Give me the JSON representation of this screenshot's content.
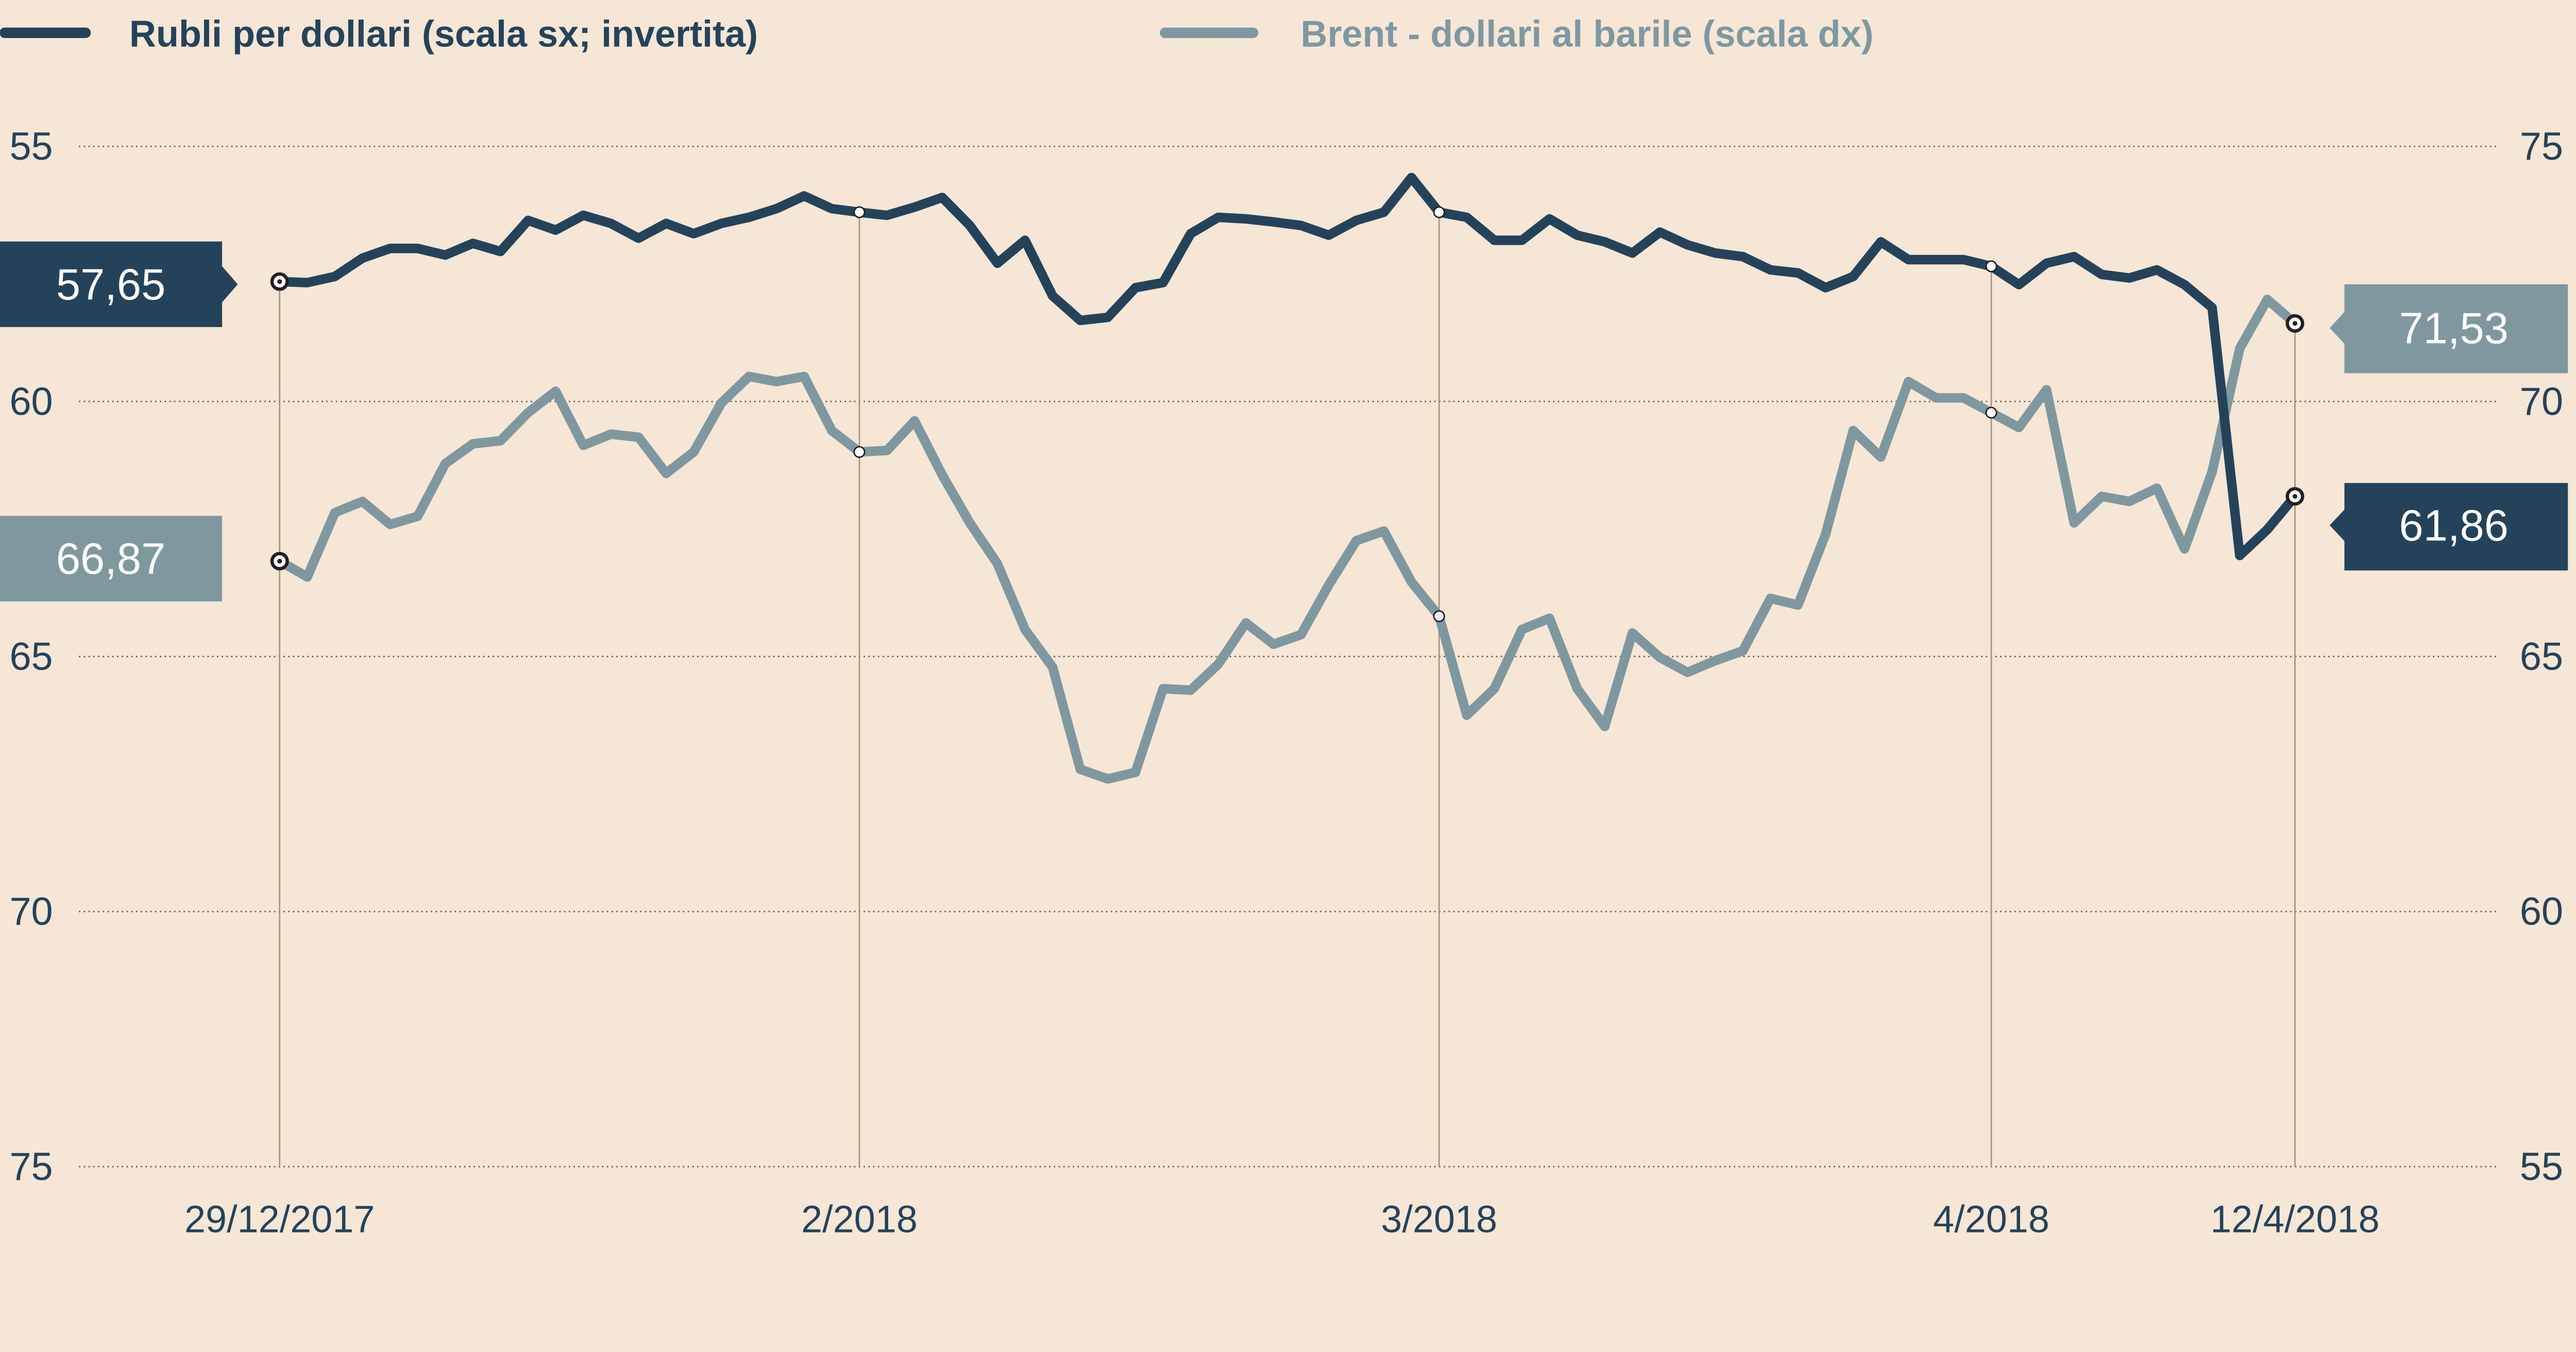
{
  "chart_data": {
    "type": "line",
    "title": "",
    "legend": {
      "placement": "top",
      "entries": [
        "Rubli per dollari (scala sx; invertita)",
        "Brent - dollari al barile (scala dx)"
      ]
    },
    "left_axis": {
      "label": "Rubli per dollari",
      "ticks": [
        "55",
        "60",
        "65",
        "70",
        "75"
      ],
      "range": [
        55,
        75
      ],
      "inverted": true
    },
    "right_axis": {
      "label": "Brent",
      "ticks": [
        "75",
        "70",
        "65",
        "60",
        "55"
      ],
      "range": [
        55,
        75
      ]
    },
    "x_ticks": [
      {
        "label": "29/12/2017",
        "index": 0
      },
      {
        "label": "2/2018",
        "index": 21
      },
      {
        "label": "3/2018",
        "index": 42
      },
      {
        "label": "4/2018",
        "index": 62
      },
      {
        "label": "12/4/2018",
        "index": 73
      }
    ],
    "grid": true,
    "series": [
      {
        "name": "Rubli per dollari (scala sx; invertita)",
        "axis": "left",
        "color": "#24435a",
        "start_label": "57,65",
        "end_label": "61,86",
        "values": [
          57.65,
          57.67,
          57.55,
          57.19,
          57.0,
          57.0,
          57.13,
          56.9,
          57.06,
          56.45,
          56.64,
          56.35,
          56.51,
          56.8,
          56.51,
          56.71,
          56.51,
          56.39,
          56.22,
          55.97,
          56.22,
          56.29,
          56.35,
          56.19,
          56.0,
          56.55,
          57.29,
          56.84,
          57.93,
          58.41,
          58.35,
          57.77,
          57.67,
          56.71,
          56.39,
          56.42,
          56.48,
          56.55,
          56.74,
          56.45,
          56.29,
          55.61,
          56.29,
          56.39,
          56.84,
          56.84,
          56.42,
          56.74,
          56.87,
          57.09,
          56.68,
          56.93,
          57.09,
          57.16,
          57.42,
          57.48,
          57.77,
          57.55,
          56.87,
          57.22,
          57.22,
          57.22,
          57.35,
          57.71,
          57.29,
          57.16,
          57.51,
          57.58,
          57.42,
          57.71,
          58.16,
          63.02,
          62.51,
          61.86
        ]
      },
      {
        "name": "Brent - dollari al barile (scala dx)",
        "axis": "right",
        "color": "#7f98a0",
        "start_label": "66,87",
        "end_label": "71,53",
        "values": [
          66.87,
          66.56,
          67.82,
          68.04,
          67.59,
          67.75,
          68.78,
          69.17,
          69.23,
          69.78,
          70.2,
          69.14,
          69.36,
          69.3,
          68.59,
          69.01,
          69.97,
          70.49,
          70.39,
          70.49,
          69.43,
          69.01,
          69.04,
          69.62,
          68.56,
          67.62,
          66.82,
          65.53,
          64.79,
          62.79,
          62.6,
          62.73,
          64.37,
          64.34,
          64.85,
          65.66,
          65.24,
          65.43,
          66.4,
          67.27,
          67.46,
          66.46,
          65.79,
          63.85,
          64.37,
          65.53,
          65.75,
          64.37,
          63.63,
          65.46,
          64.98,
          64.69,
          64.92,
          65.11,
          66.14,
          66.01,
          67.4,
          69.43,
          68.91,
          70.39,
          70.07,
          70.07,
          69.78,
          69.49,
          70.23,
          67.62,
          68.14,
          68.04,
          68.3,
          67.11,
          68.62,
          71.04,
          72.0,
          71.53
        ]
      }
    ]
  }
}
